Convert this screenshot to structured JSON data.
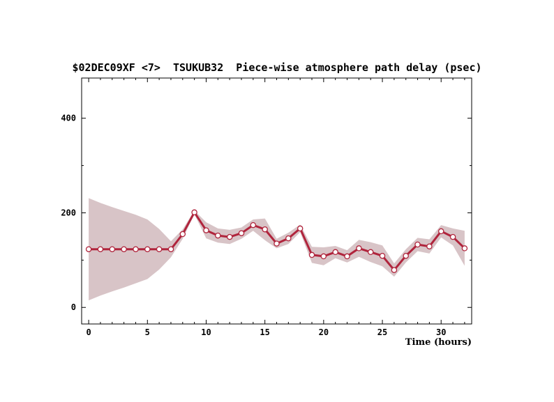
{
  "chart_data": {
    "type": "line",
    "title": "$02DEC09XF <7>  TSUKUB32  Piece-wise atmosphere path delay (psec)",
    "xlabel": "Time (hours)",
    "ylabel": "",
    "xlim": [
      -0.6,
      32.6
    ],
    "ylim": [
      -35,
      485
    ],
    "xticks": [
      0,
      5,
      10,
      15,
      20,
      25,
      30
    ],
    "yticks": [
      0,
      200,
      400
    ],
    "grid": false,
    "colors": {
      "line": "#b0243c",
      "band": "#d8c4c7",
      "marker_fill": "#ffffff"
    },
    "series": [
      {
        "x": [
          0,
          1,
          2,
          3,
          4,
          5,
          6,
          7,
          8,
          9,
          10,
          11,
          12,
          13,
          14,
          15,
          16,
          17,
          18,
          19,
          20,
          21,
          22,
          23,
          24,
          25,
          26,
          27,
          28,
          29,
          30,
          31,
          32
        ],
        "y": [
          123,
          123,
          123,
          123,
          123,
          123,
          123,
          123,
          155,
          201,
          163,
          152,
          149,
          157,
          174,
          165,
          135,
          146,
          167,
          111,
          108,
          117,
          108,
          125,
          117,
          109,
          79,
          109,
          133,
          129,
          161,
          149,
          125
        ],
        "upper": [
          231,
          221,
          212,
          204,
          196,
          186,
          166,
          140,
          165,
          205,
          180,
          167,
          164,
          169,
          186,
          188,
          145,
          158,
          175,
          128,
          127,
          130,
          121,
          143,
          138,
          131,
          93,
          123,
          147,
          144,
          174,
          167,
          162
        ],
        "lower": [
          15,
          25,
          34,
          42,
          51,
          60,
          80,
          106,
          145,
          197,
          146,
          137,
          134,
          145,
          162,
          142,
          125,
          134,
          159,
          94,
          89,
          104,
          95,
          107,
          96,
          87,
          65,
          95,
          119,
          114,
          148,
          131,
          88
        ]
      }
    ]
  }
}
